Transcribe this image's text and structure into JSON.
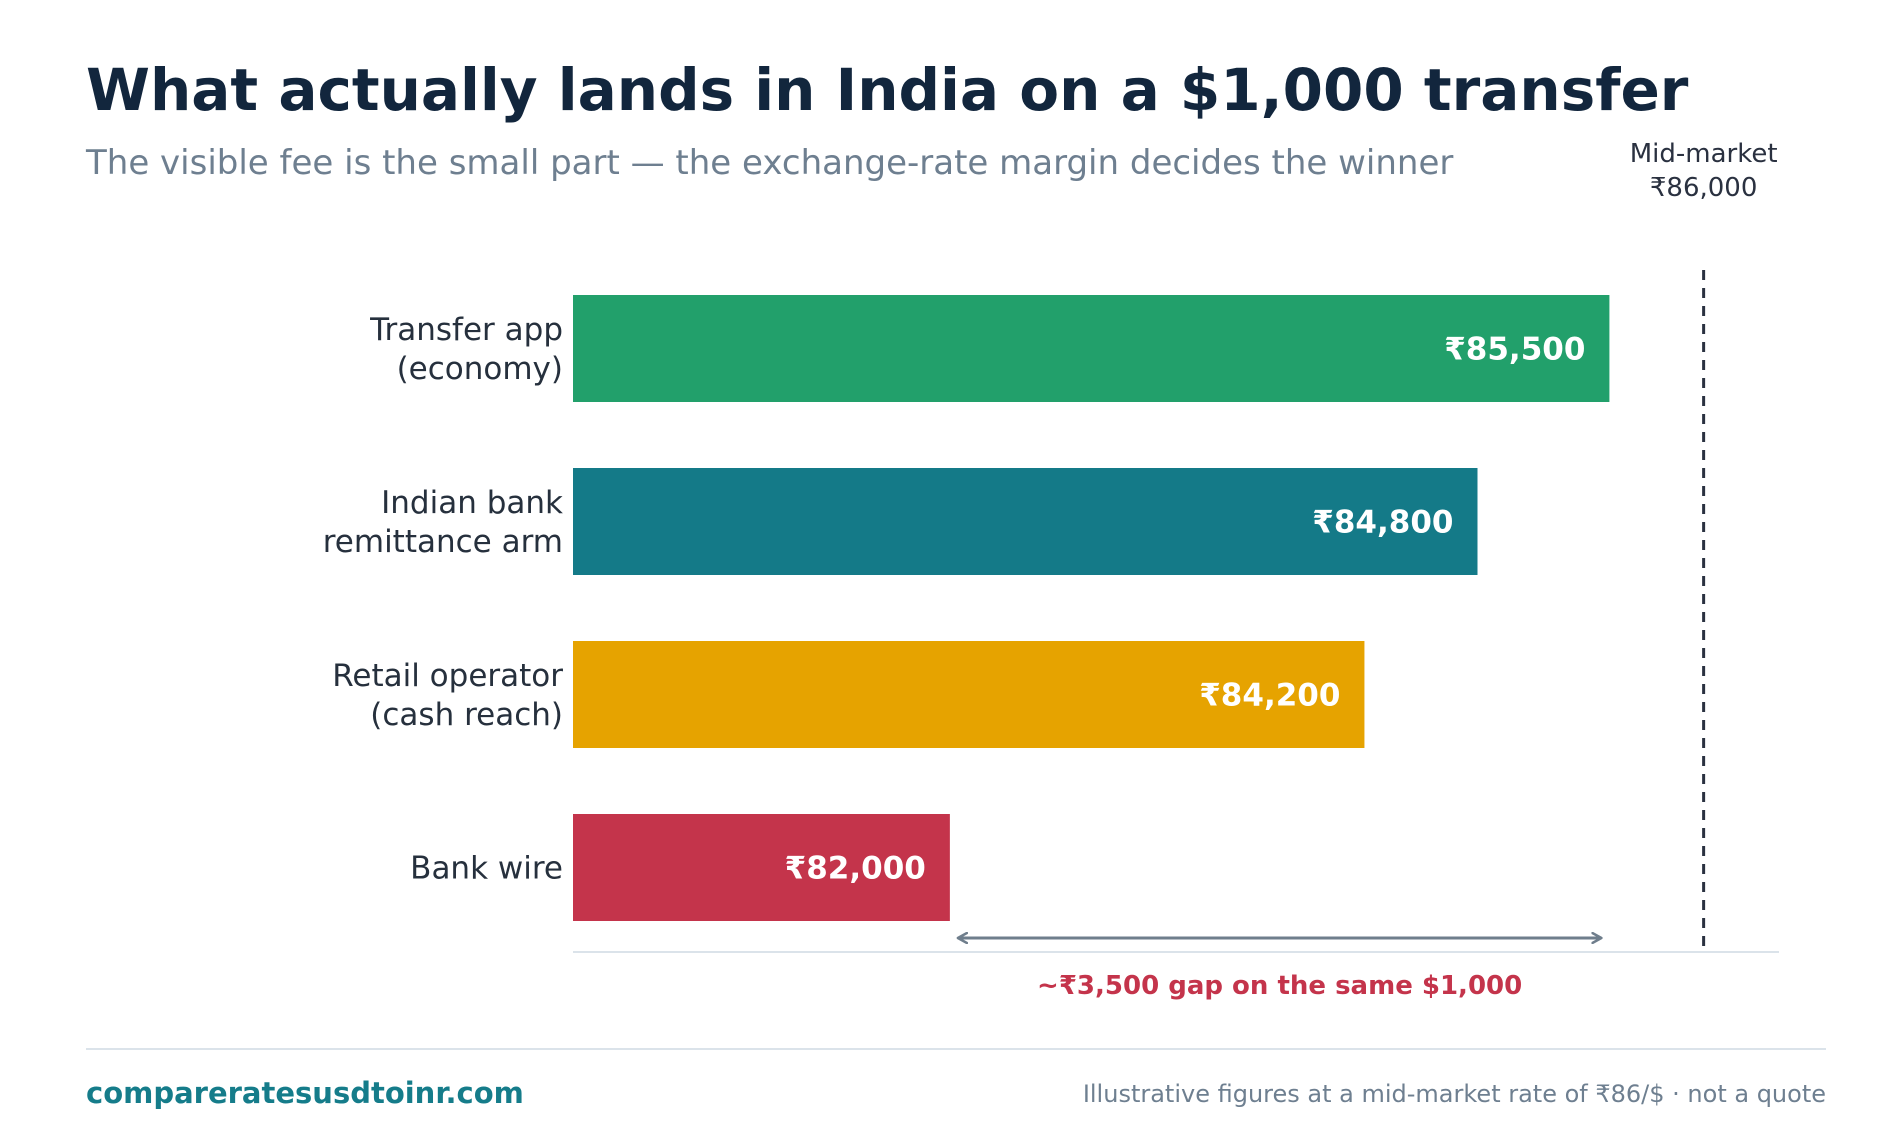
{
  "header": {
    "title": "What actually lands in India on a $1,000 transfer",
    "subtitle": "The visible fee is the small part — the exchange-rate margin decides the winner"
  },
  "chart_data": {
    "type": "bar",
    "orientation": "horizontal",
    "categories": [
      "Transfer app\n(economy)",
      "Indian bank\nremittance arm",
      "Retail operator\n(cash reach)",
      "Bank wire"
    ],
    "values": [
      85500,
      84800,
      84200,
      82000
    ],
    "value_labels": [
      "₹85,500",
      "₹84,800",
      "₹84,200",
      "₹82,000"
    ],
    "colors": [
      "#22a06b",
      "#147a88",
      "#e6a300",
      "#c4344b"
    ],
    "reference_line": {
      "value": 86000,
      "label_line1": "Mid-market",
      "label_line2": "₹86,000",
      "color": "#2a3140"
    },
    "gap_annotation": {
      "from": 82000,
      "to": 85500,
      "label": "~₹3,500 gap on the same $1,000",
      "label_color": "#c4344b",
      "arrow_color": "#6f7e8c"
    },
    "x_range": [
      80000,
      86400
    ],
    "grid": false,
    "axis_color": "#dbe3ea",
    "label_color": "#26303d"
  },
  "footer": {
    "site": "compareratesusdtoinr.com",
    "note": "Illustrative figures at a mid-market rate of ₹86/$ · not a quote"
  }
}
